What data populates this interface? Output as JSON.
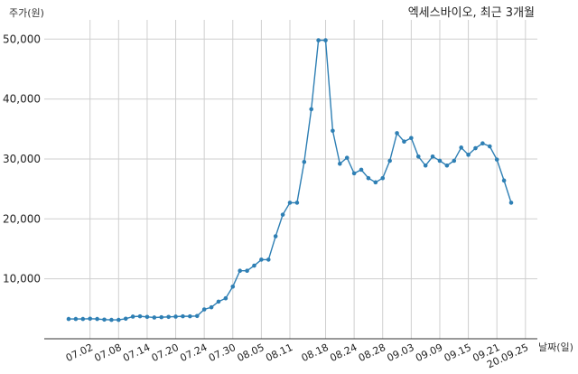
{
  "chart_data": {
    "type": "line",
    "title": "엑세스바이오, 최근 3개월",
    "ylabel": "주가(원)",
    "xlabel": "날짜(일)",
    "ylim": [
      0,
      52000
    ],
    "y_ticks": [
      {
        "value": 10000,
        "label": "10,000"
      },
      {
        "value": 20000,
        "label": "20,000"
      },
      {
        "value": 30000,
        "label": "30,000"
      },
      {
        "value": 40000,
        "label": "40,000"
      },
      {
        "value": 50000,
        "label": "50,000"
      }
    ],
    "x_ticks": [
      {
        "index": 3,
        "label": "07.02"
      },
      {
        "index": 7,
        "label": "07.08"
      },
      {
        "index": 11,
        "label": "07.14"
      },
      {
        "index": 15,
        "label": "07.20"
      },
      {
        "index": 19,
        "label": "07.24"
      },
      {
        "index": 23,
        "label": "07.30"
      },
      {
        "index": 27,
        "label": "08.05"
      },
      {
        "index": 31,
        "label": "08.11"
      },
      {
        "index": 36,
        "label": "08.18"
      },
      {
        "index": 40,
        "label": "08.24"
      },
      {
        "index": 44,
        "label": "08.28"
      },
      {
        "index": 48,
        "label": "09.03"
      },
      {
        "index": 52,
        "label": "09.09"
      },
      {
        "index": 56,
        "label": "09.15"
      },
      {
        "index": 60,
        "label": "09.21"
      },
      {
        "index": 64,
        "label": "20.09.25"
      }
    ],
    "grid": true,
    "color": "#2e7fb4",
    "series": [
      {
        "values": [
          3300,
          3300,
          3300,
          3350,
          3300,
          3200,
          3150,
          3150,
          3350,
          3700,
          3750,
          3650,
          3550,
          3600,
          3650,
          3700,
          3750,
          3750,
          3800,
          4900,
          5250,
          6200,
          6750,
          8700,
          11350,
          11350,
          12200,
          13200,
          13200,
          17100,
          20700,
          22700,
          22700,
          29500,
          38300,
          49800,
          49800,
          34700,
          29200,
          30200,
          27600,
          28200,
          26800,
          26100,
          26800,
          29700,
          34300,
          32900,
          33500,
          30400,
          28900,
          30400,
          29700,
          28900,
          29700,
          31900,
          30700,
          31800,
          32600,
          32100,
          29900,
          26400,
          22700
        ]
      }
    ]
  }
}
